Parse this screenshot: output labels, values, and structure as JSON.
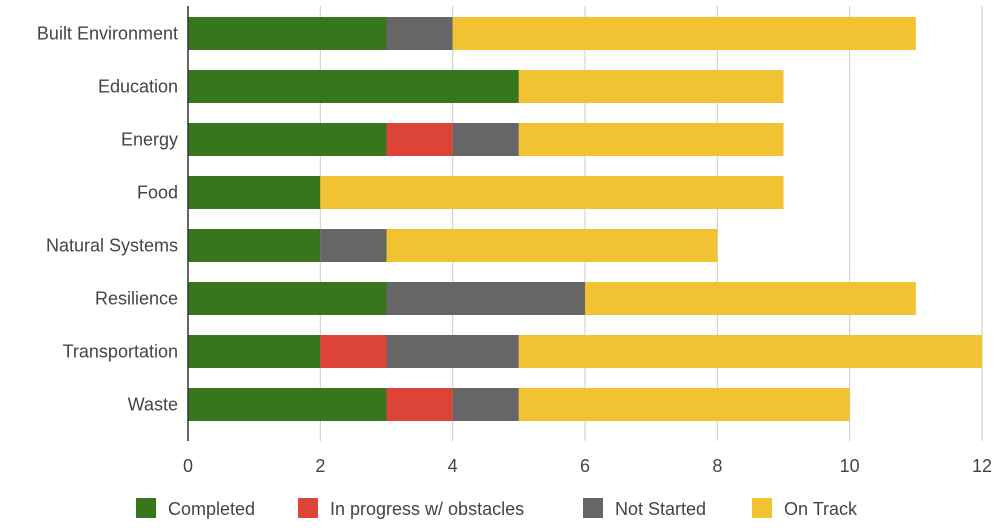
{
  "chart_data": {
    "type": "bar",
    "orientation": "horizontal",
    "stacked": true,
    "categories": [
      "Built Environment",
      "Education",
      "Energy",
      "Food",
      "Natural Systems",
      "Resilience",
      "Transportation",
      "Waste"
    ],
    "series": [
      {
        "name": "Completed",
        "color": "#38761d",
        "values": [
          3,
          5,
          3,
          2,
          2,
          3,
          2,
          3
        ]
      },
      {
        "name": "In progress w/ obstacles",
        "color": "#db4437",
        "values": [
          0,
          0,
          1,
          0,
          0,
          0,
          1,
          1
        ]
      },
      {
        "name": "Not Started",
        "color": "#666666",
        "values": [
          1,
          0,
          1,
          0,
          1,
          3,
          2,
          1
        ]
      },
      {
        "name": "On Track",
        "color": "#f1c232",
        "values": [
          7,
          4,
          4,
          7,
          5,
          5,
          7,
          5
        ]
      }
    ],
    "xlim": [
      0,
      12
    ],
    "xticks": [
      "0",
      "2",
      "4",
      "6",
      "8",
      "10",
      "12"
    ],
    "grid": true,
    "legend_position": "bottom",
    "title": "",
    "xlabel": "",
    "ylabel": ""
  }
}
